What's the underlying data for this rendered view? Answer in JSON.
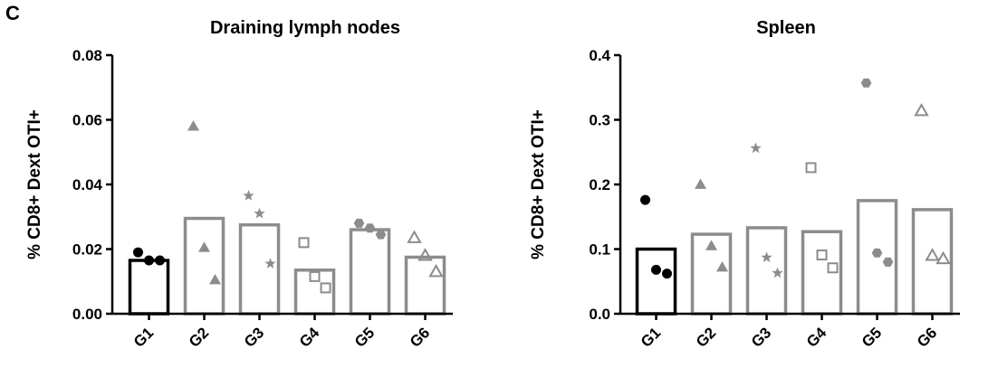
{
  "panel_label": "C",
  "colors": {
    "group1": "#000000",
    "other": "#8c8c8c"
  },
  "chart_data": [
    {
      "type": "bar",
      "title": "Draining lymph nodes",
      "ylabel": "% CD8+ Dext OTI+",
      "xlabel": "",
      "ylim": [
        0,
        0.08
      ],
      "yticks": [
        0,
        0.02,
        0.04,
        0.06,
        0.08
      ],
      "ytick_labels": [
        "0.00",
        "0.02",
        "0.04",
        "0.06",
        "0.08"
      ],
      "categories": [
        "G1",
        "G2",
        "G3",
        "G4",
        "G5",
        "G6"
      ],
      "values": [
        0.0165,
        0.0295,
        0.0275,
        0.0135,
        0.026,
        0.0175
      ],
      "markers": [
        "filled-circle",
        "filled-triangle",
        "star",
        "open-square",
        "filled-hexagon",
        "open-triangle"
      ],
      "points": [
        [
          0.019,
          0.0165,
          0.0165
        ],
        [
          0.058,
          0.0205,
          0.0105
        ],
        [
          0.0365,
          0.031,
          0.0155
        ],
        [
          0.022,
          0.0115,
          0.008
        ],
        [
          0.028,
          0.0265,
          0.0245
        ],
        [
          0.0235,
          0.018,
          0.013
        ]
      ]
    },
    {
      "type": "bar",
      "title": "Spleen",
      "ylabel": "% CD8+ Dext OTI+",
      "xlabel": "",
      "ylim": [
        0,
        0.4
      ],
      "yticks": [
        0,
        0.1,
        0.2,
        0.3,
        0.4
      ],
      "ytick_labels": [
        "0.0",
        "0.1",
        "0.2",
        "0.3",
        "0.4"
      ],
      "categories": [
        "G1",
        "G2",
        "G3",
        "G4",
        "G5",
        "G6"
      ],
      "values": [
        0.1,
        0.123,
        0.133,
        0.127,
        0.175,
        0.161
      ],
      "markers": [
        "filled-circle",
        "filled-triangle",
        "star",
        "open-square",
        "filled-hexagon",
        "open-triangle"
      ],
      "points": [
        [
          0.176,
          0.068,
          0.062
        ],
        [
          0.2,
          0.105,
          0.072
        ],
        [
          0.256,
          0.087,
          0.063
        ],
        [
          0.226,
          0.091,
          0.071
        ],
        [
          0.357,
          0.094,
          0.08
        ],
        [
          0.314,
          0.09,
          0.085
        ]
      ]
    }
  ]
}
